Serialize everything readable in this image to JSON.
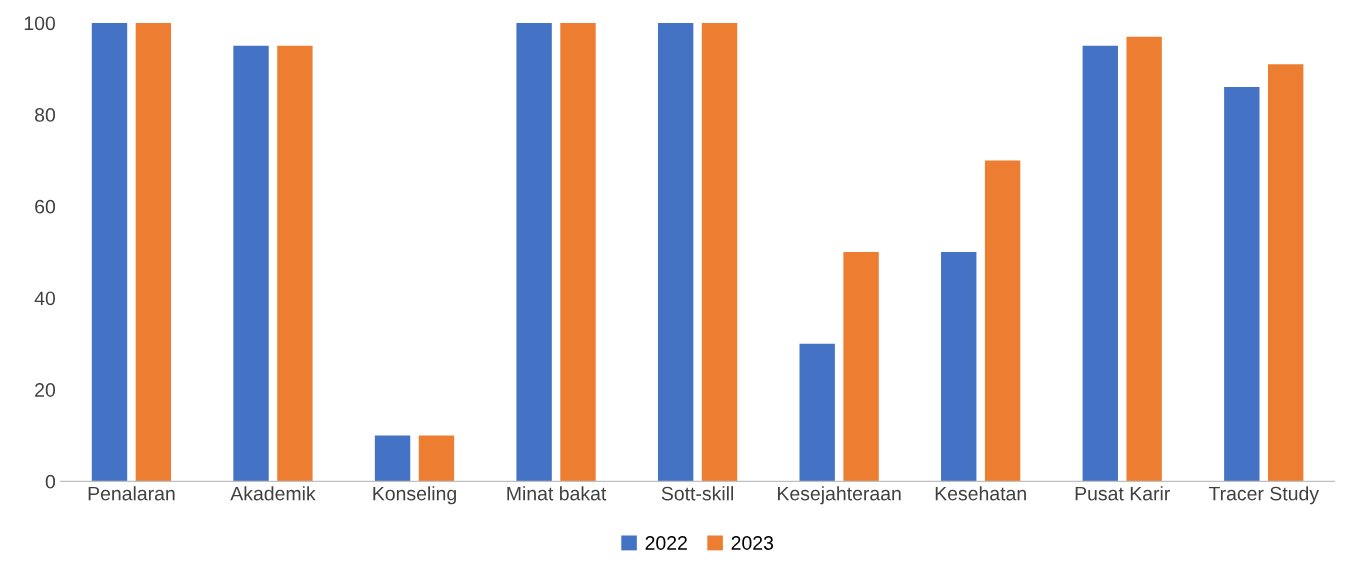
{
  "chart_data": {
    "type": "bar",
    "categories": [
      "Penalaran",
      "Akademik",
      "Konseling",
      "Minat bakat",
      "Sott-skill",
      "Kesejahteraan",
      "Kesehatan",
      "Pusat Karir",
      "Tracer Study"
    ],
    "series": [
      {
        "name": "2022",
        "color": "#4472c4",
        "values": [
          100,
          95,
          10,
          100,
          100,
          30,
          50,
          95,
          86
        ]
      },
      {
        "name": "2023",
        "color": "#ed7d31",
        "values": [
          100,
          95,
          10,
          100,
          100,
          50,
          70,
          97,
          91
        ]
      }
    ],
    "ylim": [
      0,
      100
    ],
    "yticks": [
      0,
      20,
      40,
      60,
      80,
      100
    ],
    "grid": false,
    "legend": "bottom"
  }
}
